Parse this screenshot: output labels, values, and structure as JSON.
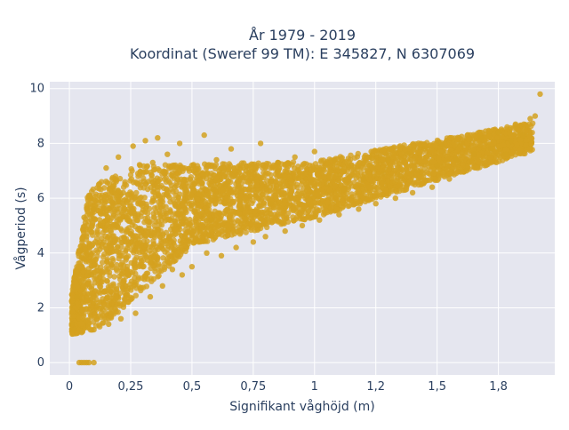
{
  "chart_data": {
    "type": "scatter",
    "title": "År 1979 - 2019",
    "subtitle": "Koordinat (Sweref 99 TM): E 345827, N 6307069",
    "xlabel": "Signifikant våghöjd (m)",
    "ylabel": "Vågperiod (s)",
    "xlim": [
      -0.08,
      1.98
    ],
    "ylim": [
      -0.45,
      10.25
    ],
    "x_ticks": [
      0,
      0.25,
      0.5,
      0.75,
      1,
      1.25,
      1.5,
      1.75
    ],
    "x_tick_labels": [
      "0",
      "0,25",
      "0,5",
      "0,75",
      "1",
      "1,2",
      "1,5",
      "1,8"
    ],
    "y_ticks": [
      0,
      2,
      4,
      6,
      8,
      10
    ],
    "y_tick_labels": [
      "0",
      "2",
      "4",
      "6",
      "8",
      "10"
    ],
    "grid": true,
    "legend": "none",
    "colors": {
      "marker": "#d4a11f",
      "plot_bg": "#e5e6ef",
      "grid": "#ffffff",
      "text": "#2a3f5f"
    },
    "points": [
      {
        "x": 0.04,
        "y": 0.0
      },
      {
        "x": 0.05,
        "y": 0.0
      },
      {
        "x": 0.06,
        "y": 0.0
      },
      {
        "x": 0.07,
        "y": 0.0
      },
      {
        "x": 0.08,
        "y": 0.0
      },
      {
        "x": 0.1,
        "y": 0.0
      },
      {
        "x": 0.01,
        "y": 1.4
      },
      {
        "x": 0.02,
        "y": 1.2
      },
      {
        "x": 0.03,
        "y": 2.4
      },
      {
        "x": 0.03,
        "y": 3.3
      },
      {
        "x": 0.04,
        "y": 4.1
      },
      {
        "x": 0.05,
        "y": 1.1
      },
      {
        "x": 0.06,
        "y": 5.3
      },
      {
        "x": 0.07,
        "y": 4.6
      },
      {
        "x": 0.08,
        "y": 6.1
      },
      {
        "x": 0.09,
        "y": 3.2
      },
      {
        "x": 0.1,
        "y": 5.6
      },
      {
        "x": 0.1,
        "y": 1.2
      },
      {
        "x": 0.12,
        "y": 6.5
      },
      {
        "x": 0.13,
        "y": 2.0
      },
      {
        "x": 0.14,
        "y": 4.4
      },
      {
        "x": 0.15,
        "y": 7.1
      },
      {
        "x": 0.16,
        "y": 1.4
      },
      {
        "x": 0.17,
        "y": 3.6
      },
      {
        "x": 0.19,
        "y": 5.0
      },
      {
        "x": 0.2,
        "y": 7.5
      },
      {
        "x": 0.21,
        "y": 1.6
      },
      {
        "x": 0.22,
        "y": 6.2
      },
      {
        "x": 0.23,
        "y": 2.8
      },
      {
        "x": 0.25,
        "y": 4.7
      },
      {
        "x": 0.26,
        "y": 7.9
      },
      {
        "x": 0.27,
        "y": 1.8
      },
      {
        "x": 0.28,
        "y": 5.8
      },
      {
        "x": 0.3,
        "y": 3.5
      },
      {
        "x": 0.31,
        "y": 8.1
      },
      {
        "x": 0.32,
        "y": 6.6
      },
      {
        "x": 0.33,
        "y": 2.4
      },
      {
        "x": 0.34,
        "y": 7.3
      },
      {
        "x": 0.35,
        "y": 4.1
      },
      {
        "x": 0.36,
        "y": 8.2
      },
      {
        "x": 0.38,
        "y": 2.8
      },
      {
        "x": 0.39,
        "y": 5.5
      },
      {
        "x": 0.4,
        "y": 7.6
      },
      {
        "x": 0.42,
        "y": 3.4
      },
      {
        "x": 0.43,
        "y": 6.4
      },
      {
        "x": 0.45,
        "y": 8.0
      },
      {
        "x": 0.46,
        "y": 3.2
      },
      {
        "x": 0.48,
        "y": 5.9
      },
      {
        "x": 0.5,
        "y": 7.2
      },
      {
        "x": 0.5,
        "y": 3.5
      },
      {
        "x": 0.52,
        "y": 6.9
      },
      {
        "x": 0.55,
        "y": 8.3
      },
      {
        "x": 0.56,
        "y": 4.0
      },
      {
        "x": 0.58,
        "y": 5.2
      },
      {
        "x": 0.6,
        "y": 7.4
      },
      {
        "x": 0.62,
        "y": 3.9
      },
      {
        "x": 0.64,
        "y": 6.5
      },
      {
        "x": 0.66,
        "y": 7.8
      },
      {
        "x": 0.68,
        "y": 4.2
      },
      {
        "x": 0.7,
        "y": 5.6
      },
      {
        "x": 0.72,
        "y": 7.0
      },
      {
        "x": 0.75,
        "y": 4.4
      },
      {
        "x": 0.76,
        "y": 6.2
      },
      {
        "x": 0.78,
        "y": 8.0
      },
      {
        "x": 0.8,
        "y": 4.6
      },
      {
        "x": 0.82,
        "y": 5.8
      },
      {
        "x": 0.85,
        "y": 7.3
      },
      {
        "x": 0.88,
        "y": 4.8
      },
      {
        "x": 0.9,
        "y": 6.0
      },
      {
        "x": 0.92,
        "y": 7.5
      },
      {
        "x": 0.95,
        "y": 5.0
      },
      {
        "x": 0.97,
        "y": 6.4
      },
      {
        "x": 1.0,
        "y": 7.7
      },
      {
        "x": 1.02,
        "y": 5.2
      },
      {
        "x": 1.05,
        "y": 6.5
      },
      {
        "x": 1.08,
        "y": 7.4
      },
      {
        "x": 1.1,
        "y": 5.4
      },
      {
        "x": 1.12,
        "y": 6.3
      },
      {
        "x": 1.15,
        "y": 7.2
      },
      {
        "x": 1.18,
        "y": 5.6
      },
      {
        "x": 1.2,
        "y": 6.7
      },
      {
        "x": 1.22,
        "y": 7.5
      },
      {
        "x": 1.25,
        "y": 5.8
      },
      {
        "x": 1.28,
        "y": 6.9
      },
      {
        "x": 1.3,
        "y": 7.4
      },
      {
        "x": 1.33,
        "y": 6.0
      },
      {
        "x": 1.35,
        "y": 6.8
      },
      {
        "x": 1.38,
        "y": 7.6
      },
      {
        "x": 1.4,
        "y": 6.2
      },
      {
        "x": 1.42,
        "y": 7.0
      },
      {
        "x": 1.45,
        "y": 7.8
      },
      {
        "x": 1.48,
        "y": 6.4
      },
      {
        "x": 1.5,
        "y": 7.2
      },
      {
        "x": 1.52,
        "y": 7.9
      },
      {
        "x": 1.55,
        "y": 6.7
      },
      {
        "x": 1.58,
        "y": 7.4
      },
      {
        "x": 1.6,
        "y": 8.0
      },
      {
        "x": 1.62,
        "y": 7.0
      },
      {
        "x": 1.65,
        "y": 7.6
      },
      {
        "x": 1.68,
        "y": 8.2
      },
      {
        "x": 1.7,
        "y": 7.2
      },
      {
        "x": 1.72,
        "y": 7.8
      },
      {
        "x": 1.75,
        "y": 8.4
      },
      {
        "x": 1.78,
        "y": 7.6
      },
      {
        "x": 1.8,
        "y": 8.1
      },
      {
        "x": 1.82,
        "y": 8.7
      },
      {
        "x": 1.85,
        "y": 8.3
      },
      {
        "x": 1.88,
        "y": 8.9
      },
      {
        "x": 1.9,
        "y": 9.0
      },
      {
        "x": 1.92,
        "y": 9.8
      }
    ]
  }
}
